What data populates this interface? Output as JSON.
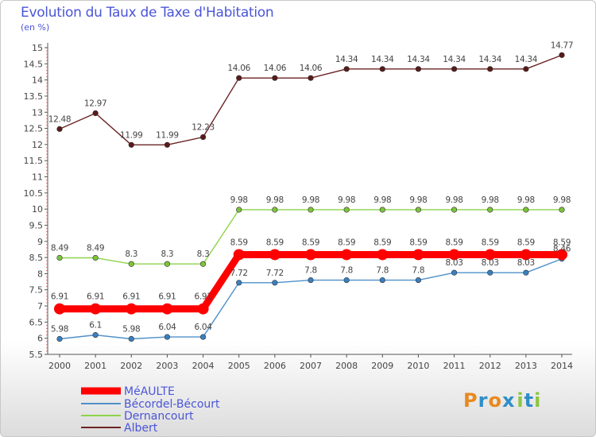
{
  "header": {
    "title": "Evolution du Taux de Taxe d'Habitation",
    "unit": "(en %)"
  },
  "logo": {
    "text": "Prox iti",
    "letters": [
      "P",
      "r",
      "o",
      "x",
      "i",
      "t",
      "i"
    ],
    "colors": [
      "#e8891e",
      "#2f8ec8",
      "#e8891e",
      "#2f8ec8",
      "#8cc63f",
      "#2f8ec8",
      "#8cc63f"
    ]
  },
  "chart_data": {
    "type": "line",
    "title": "Evolution du Taux de Taxe d'Habitation",
    "ylabel": "(en %)",
    "xlabel": "",
    "x": [
      "2000",
      "2001",
      "2002",
      "2003",
      "2004",
      "2005",
      "2006",
      "2007",
      "2008",
      "2009",
      "2010",
      "2011",
      "2012",
      "2013",
      "2014"
    ],
    "ylim": [
      5.5,
      15
    ],
    "yticks": [
      "5.5",
      "6",
      "6.5",
      "7",
      "7.5",
      "8",
      "8.5",
      "9",
      "9.5",
      "10",
      "10.5",
      "11",
      "11.5",
      "12",
      "12.5",
      "13",
      "13.5",
      "14",
      "14.5",
      "15"
    ],
    "grid": false,
    "legend_position": "bottom-left",
    "series": [
      {
        "name": "MéAULTE",
        "color": "#ff0000",
        "marker": "#ff0000",
        "style": "thick",
        "values": [
          6.91,
          6.91,
          6.91,
          6.91,
          6.91,
          8.59,
          8.59,
          8.59,
          8.59,
          8.59,
          8.59,
          8.59,
          8.59,
          8.59,
          8.59
        ]
      },
      {
        "name": "Bécordel-Bécourt",
        "color": "#4f90c8",
        "marker": "#3a7fc0",
        "style": "thin",
        "values": [
          5.98,
          6.1,
          5.98,
          6.04,
          6.04,
          7.72,
          7.72,
          7.8,
          7.8,
          7.8,
          7.8,
          8.03,
          8.03,
          8.03,
          8.46
        ]
      },
      {
        "name": "Dernancourt",
        "color": "#8ed34a",
        "marker": "#7cc43a",
        "style": "thin",
        "values": [
          8.49,
          8.49,
          8.3,
          8.3,
          8.3,
          9.98,
          9.98,
          9.98,
          9.98,
          9.98,
          9.98,
          9.98,
          9.98,
          9.98,
          9.98
        ]
      },
      {
        "name": "Albert",
        "color": "#6b2424",
        "marker": "#5a1a1a",
        "style": "thin",
        "values": [
          12.48,
          12.97,
          11.99,
          11.99,
          12.23,
          14.06,
          14.06,
          14.06,
          14.34,
          14.34,
          14.34,
          14.34,
          14.34,
          14.34,
          14.77
        ]
      }
    ],
    "data_labels": {
      "MéAULTE": [
        "6.91",
        "6.91",
        "6.91",
        "6.91",
        "6.91",
        "8.59",
        "8.59",
        "8.59",
        "8.59",
        "8.59",
        "8.59",
        "8.59",
        "8.59",
        "8.59",
        "8.59"
      ],
      "Bécordel-Bécourt": [
        "5.98",
        "6.1",
        "5.98",
        "6.04",
        "6.04",
        "7.72",
        "7.72",
        "7.8",
        "7.8",
        "7.8",
        "7.8",
        "8.03",
        "8.03",
        "8.03",
        "8.46"
      ],
      "Dernancourt": [
        "8.49",
        "8.49",
        "8.3",
        "8.3",
        "8.3",
        "9.98",
        "9.98",
        "9.98",
        "9.98",
        "9.98",
        "9.98",
        "9.98",
        "9.98",
        "9.98",
        "9.98"
      ],
      "Albert": [
        "12.48",
        "12.97",
        "11.99",
        "11.99",
        "12.23",
        "14.06",
        "14.06",
        "14.06",
        "14.34",
        "14.34",
        "14.34",
        "14.34",
        "14.34",
        "14.34",
        "14.77"
      ]
    }
  }
}
